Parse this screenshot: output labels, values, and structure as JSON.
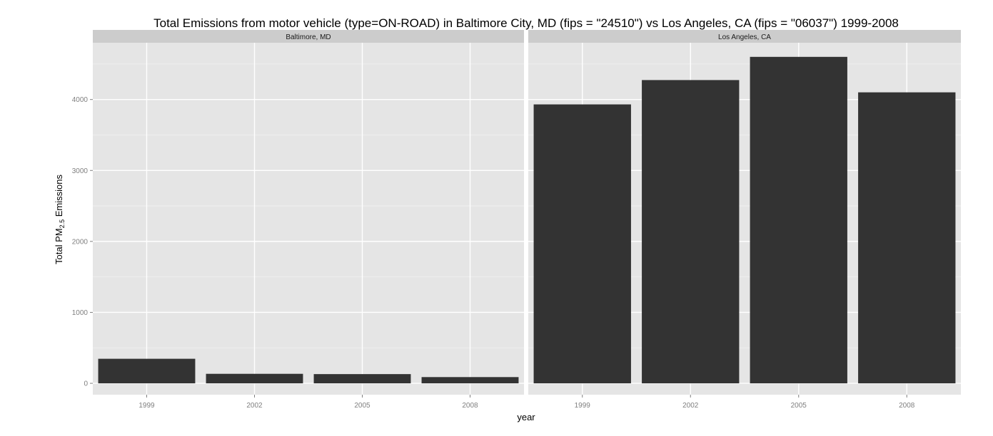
{
  "chart_data": {
    "type": "bar",
    "title": "Total Emissions from motor vehicle (type=ON-ROAD) in Baltimore City, MD (fips = \"24510\") vs Los Angeles, CA (fips = \"06037\")  1999-2008",
    "xlabel": "year",
    "ylabel": {
      "before": "Total PM",
      "subscript": "2.5",
      "after": " Emissions"
    },
    "categories": [
      "1999",
      "2002",
      "2005",
      "2008"
    ],
    "ylim": [
      -160,
      4800
    ],
    "yticks": [
      0,
      1000,
      2000,
      3000,
      4000
    ],
    "grid": true,
    "bar_color": "#333333",
    "panel_background": "#e5e5e5",
    "strip_background": "#cccccc",
    "panels": [
      {
        "name": "Baltimore, MD",
        "values": [
          346,
          134,
          130,
          88
        ]
      },
      {
        "name": "Los Angeles, CA",
        "values": [
          3931,
          4274,
          4601,
          4101
        ]
      }
    ]
  }
}
